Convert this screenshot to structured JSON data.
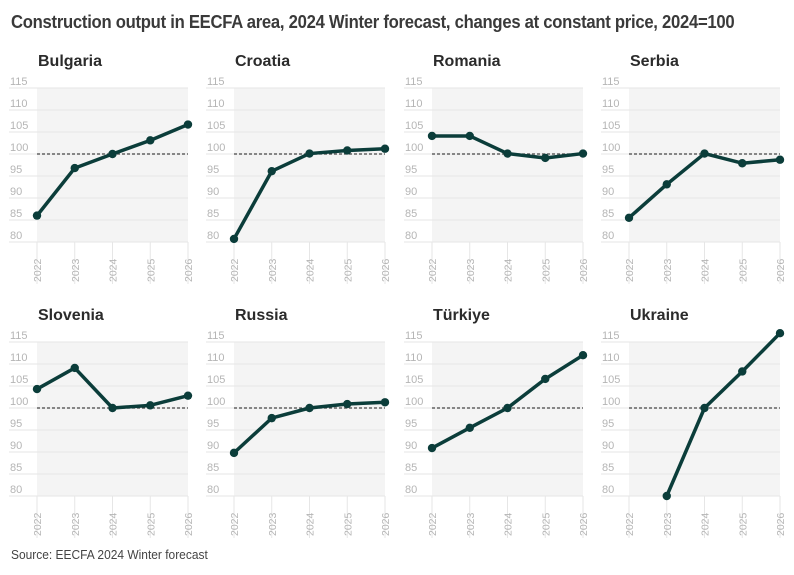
{
  "title": "Construction output in EECFA area, 2024 Winter forecast, changes at constant price, 2024=100",
  "source": "Source: EECFA 2024 Winter forecast",
  "colors": {
    "line": "#0b3d3a",
    "plot_bg": "#f4f4f4",
    "grid": "#e6e6e6",
    "tick": "#b5b5b5",
    "reference": "#444444"
  },
  "chart_data": {
    "type": "line",
    "layout": "small-multiples 2x4",
    "x": [
      "2022",
      "2023",
      "2024",
      "2025",
      "2026"
    ],
    "y_ticks": [
      80,
      85,
      90,
      95,
      100,
      105,
      110,
      115
    ],
    "ylim": [
      80,
      115
    ],
    "reference_line": 100,
    "grid": true,
    "panels": [
      {
        "title": "Bulgaria",
        "values": [
          86,
          96.8,
          100,
          103.1,
          106.7
        ]
      },
      {
        "title": "Croatia",
        "values": [
          80.7,
          96.1,
          100.1,
          100.8,
          101.2
        ]
      },
      {
        "title": "Romania",
        "values": [
          104.1,
          104.1,
          100.1,
          99.1,
          100.1
        ]
      },
      {
        "title": "Serbia",
        "values": [
          85.5,
          93.1,
          100.1,
          97.9,
          98.7
        ]
      },
      {
        "title": "Slovenia",
        "values": [
          104.3,
          109.1,
          100,
          100.6,
          102.8
        ]
      },
      {
        "title": "Russia",
        "values": [
          89.8,
          97.7,
          100,
          100.9,
          101.3
        ]
      },
      {
        "title": "Türkiye",
        "values": [
          90.9,
          95.5,
          100,
          106.6,
          112
        ]
      },
      {
        "title": "Ukraine",
        "values": [
          null,
          80,
          100,
          108.3,
          117
        ]
      }
    ]
  }
}
